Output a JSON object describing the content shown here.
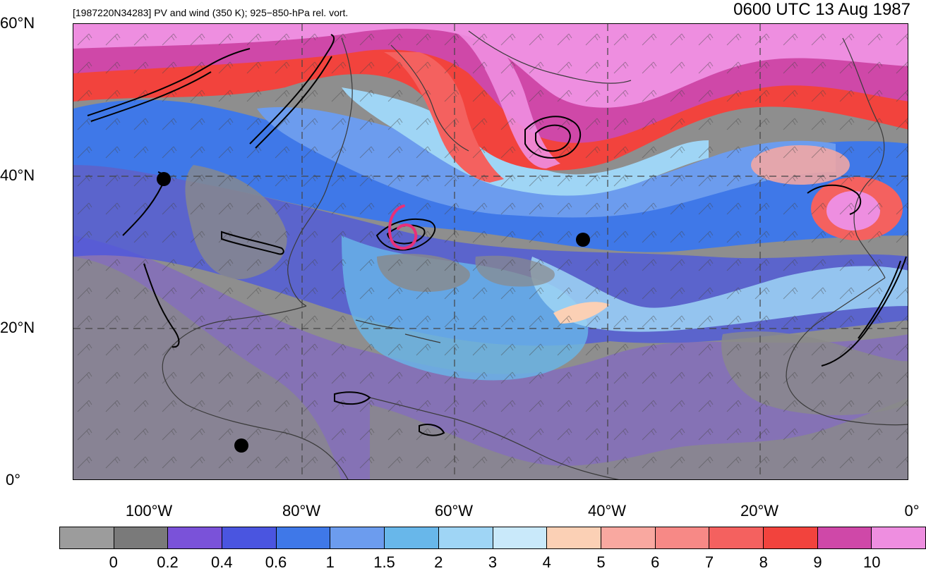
{
  "header": {
    "left_title": "[1987220N34283] PV and wind (350 K); 925−850-hPa rel. vort.",
    "right_title": "0600 UTC 13 Aug 1987"
  },
  "axes": {
    "lat_labels": [
      "60°N",
      "40°N",
      "20°N",
      "0°"
    ],
    "lon_labels": [
      "100°W",
      "80°W",
      "60°W",
      "40°W",
      "20°W",
      "0°"
    ]
  },
  "colorbar": {
    "colors": [
      "#9c9c9c",
      "#7a7a7a",
      "#7a52d9",
      "#4a55e0",
      "#3f78e8",
      "#6c9cee",
      "#68b7ea",
      "#9fd5f5",
      "#c9e9fa",
      "#fbd0b5",
      "#f9a8a0",
      "#f78986",
      "#f4615f",
      "#f2433d",
      "#cf48a8",
      "#ee8ee0"
    ],
    "labels": [
      "0",
      "0.2",
      "0.4",
      "0.6",
      "1",
      "1.5",
      "2",
      "3",
      "4",
      "5",
      "6",
      "7",
      "8",
      "9",
      "10"
    ]
  },
  "map": {
    "storm_marker_color": "#e8307a"
  }
}
